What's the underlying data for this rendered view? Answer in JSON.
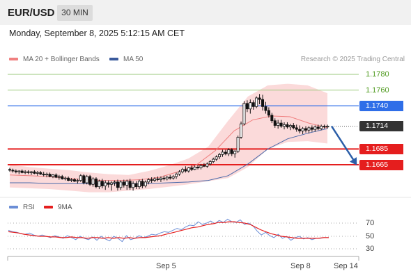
{
  "header": {
    "symbol": "EUR/USD",
    "timeframe": "30 MIN"
  },
  "datetime": "Monday, September 8, 2025 5:12:15 AM CET",
  "legend": {
    "ma20_label": "MA 20 + Bollinger Bands",
    "ma50_label": "MA 50",
    "credit": "Research © 2025 Trading Central"
  },
  "rsi_legend": {
    "rsi_label": "RSI",
    "ma_label": "9MA"
  },
  "price_levels": {
    "r2": {
      "label": "1.1780",
      "value": 1.178,
      "color": "#4f9a1f"
    },
    "r1": {
      "label": "1.1760",
      "value": 1.176,
      "color": "#4f9a1f"
    },
    "pivot": {
      "label": "1.1740",
      "value": 1.174,
      "color": "#2f6ee8"
    },
    "last": {
      "label": "1.1714",
      "value": 1.1714,
      "color": "#333333"
    },
    "s1": {
      "label": "1.1685",
      "value": 1.1685,
      "color": "#e51e1e"
    },
    "s2": {
      "label": "1.1665",
      "value": 1.1665,
      "color": "#e51e1e"
    }
  },
  "rsi_levels": {
    "upper": "70",
    "middle": "50",
    "lower": "30"
  },
  "xaxis": {
    "label1": "Sep 5",
    "label2": "Sep 8",
    "label3": "Sep 14"
  },
  "chart_data": {
    "type": "candlestick",
    "candles_ohlc": [
      [
        1.1659,
        1.1661,
        1.1656,
        1.1658
      ],
      [
        1.1658,
        1.166,
        1.1655,
        1.1657
      ],
      [
        1.1657,
        1.1659,
        1.1654,
        1.1656
      ],
      [
        1.1656,
        1.1658,
        1.1653,
        1.1657
      ],
      [
        1.1657,
        1.1659,
        1.1654,
        1.1655
      ],
      [
        1.1655,
        1.1658,
        1.1653,
        1.1656
      ],
      [
        1.1656,
        1.1658,
        1.1653,
        1.1655
      ],
      [
        1.1655,
        1.1657,
        1.1652,
        1.1656
      ],
      [
        1.1656,
        1.1658,
        1.1653,
        1.1654
      ],
      [
        1.1654,
        1.1657,
        1.1651,
        1.1655
      ],
      [
        1.1655,
        1.1657,
        1.1652,
        1.1653
      ],
      [
        1.1653,
        1.1656,
        1.165,
        1.1652
      ],
      [
        1.1652,
        1.1655,
        1.1649,
        1.1653
      ],
      [
        1.1653,
        1.1655,
        1.1649,
        1.165
      ],
      [
        1.165,
        1.1653,
        1.1648,
        1.1652
      ],
      [
        1.1652,
        1.1654,
        1.1648,
        1.1649
      ],
      [
        1.1649,
        1.1652,
        1.1646,
        1.165
      ],
      [
        1.165,
        1.1652,
        1.1646,
        1.1647
      ],
      [
        1.1647,
        1.165,
        1.1645,
        1.1648
      ],
      [
        1.1648,
        1.165,
        1.1644,
        1.1645
      ],
      [
        1.1645,
        1.1648,
        1.1643,
        1.1646
      ],
      [
        1.1646,
        1.1648,
        1.1643,
        1.1644
      ],
      [
        1.1644,
        1.1647,
        1.1641,
        1.1645
      ],
      [
        1.1645,
        1.1653,
        1.1643,
        1.1651
      ],
      [
        1.1651,
        1.1653,
        1.164,
        1.1642
      ],
      [
        1.1642,
        1.1652,
        1.164,
        1.165
      ],
      [
        1.165,
        1.1652,
        1.1638,
        1.164
      ],
      [
        1.164,
        1.1649,
        1.1637,
        1.1647
      ],
      [
        1.1647,
        1.1649,
        1.1635,
        1.1637
      ],
      [
        1.1637,
        1.1646,
        1.1634,
        1.1644
      ],
      [
        1.1644,
        1.1647,
        1.1635,
        1.1638
      ],
      [
        1.1638,
        1.1645,
        1.1633,
        1.1642
      ],
      [
        1.1642,
        1.1645,
        1.1636,
        1.164
      ],
      [
        1.164,
        1.1644,
        1.1632,
        1.1642
      ],
      [
        1.1642,
        1.1645,
        1.1638,
        1.1643
      ],
      [
        1.1643,
        1.1646,
        1.1632,
        1.1636
      ],
      [
        1.1636,
        1.1645,
        1.1633,
        1.1643
      ],
      [
        1.1643,
        1.1646,
        1.1636,
        1.1639
      ],
      [
        1.1639,
        1.1646,
        1.1633,
        1.1644
      ],
      [
        1.1644,
        1.1647,
        1.1633,
        1.1636
      ],
      [
        1.1636,
        1.1644,
        1.1632,
        1.1641
      ],
      [
        1.1641,
        1.1644,
        1.1634,
        1.1637
      ],
      [
        1.1637,
        1.1646,
        1.1634,
        1.1644
      ],
      [
        1.1644,
        1.1647,
        1.1635,
        1.1638
      ],
      [
        1.1638,
        1.1645,
        1.1636,
        1.1643
      ],
      [
        1.1643,
        1.1648,
        1.164,
        1.1646
      ],
      [
        1.1646,
        1.1649,
        1.1642,
        1.1645
      ],
      [
        1.1645,
        1.1649,
        1.1643,
        1.1647
      ],
      [
        1.1647,
        1.165,
        1.1644,
        1.1646
      ],
      [
        1.1646,
        1.165,
        1.1643,
        1.1648
      ],
      [
        1.1648,
        1.1651,
        1.1645,
        1.1647
      ],
      [
        1.1647,
        1.1651,
        1.1645,
        1.1649
      ],
      [
        1.1649,
        1.1652,
        1.1646,
        1.1648
      ],
      [
        1.1648,
        1.1652,
        1.1646,
        1.165
      ],
      [
        1.165,
        1.1655,
        1.1647,
        1.1653
      ],
      [
        1.1653,
        1.1658,
        1.1651,
        1.1656
      ],
      [
        1.1656,
        1.1661,
        1.1654,
        1.1659
      ],
      [
        1.1659,
        1.1663,
        1.1655,
        1.1657
      ],
      [
        1.1657,
        1.1662,
        1.1655,
        1.1661
      ],
      [
        1.1661,
        1.1664,
        1.1657,
        1.1659
      ],
      [
        1.1659,
        1.1664,
        1.1658,
        1.1662
      ],
      [
        1.1662,
        1.1665,
        1.1659,
        1.1661
      ],
      [
        1.1661,
        1.1666,
        1.1659,
        1.1664
      ],
      [
        1.1664,
        1.1667,
        1.1662,
        1.1663
      ],
      [
        1.1663,
        1.1668,
        1.1661,
        1.1666
      ],
      [
        1.1666,
        1.1671,
        1.1664,
        1.1669
      ],
      [
        1.1669,
        1.1674,
        1.1667,
        1.1672
      ],
      [
        1.1672,
        1.1677,
        1.167,
        1.1675
      ],
      [
        1.1675,
        1.168,
        1.1672,
        1.1678
      ],
      [
        1.1678,
        1.1684,
        1.1675,
        1.1681
      ],
      [
        1.1681,
        1.1684,
        1.1677,
        1.1679
      ],
      [
        1.1679,
        1.1686,
        1.1676,
        1.1684
      ],
      [
        1.1684,
        1.1686,
        1.1676,
        1.1679
      ],
      [
        1.1679,
        1.1684,
        1.1674,
        1.1682
      ],
      [
        1.1682,
        1.1702,
        1.168,
        1.17
      ],
      [
        1.17,
        1.172,
        1.1698,
        1.1717
      ],
      [
        1.1717,
        1.1746,
        1.1715,
        1.1743
      ],
      [
        1.1743,
        1.1747,
        1.1732,
        1.1736
      ],
      [
        1.1736,
        1.1748,
        1.173,
        1.1744
      ],
      [
        1.1744,
        1.1747,
        1.1735,
        1.1739
      ],
      [
        1.1739,
        1.1752,
        1.1737,
        1.175
      ],
      [
        1.175,
        1.1755,
        1.1742,
        1.1748
      ],
      [
        1.1748,
        1.1754,
        1.1734,
        1.1739
      ],
      [
        1.1739,
        1.1745,
        1.173,
        1.1734
      ],
      [
        1.1734,
        1.1738,
        1.1725,
        1.1728
      ],
      [
        1.1728,
        1.1731,
        1.1718,
        1.1721
      ],
      [
        1.1721,
        1.1724,
        1.1712,
        1.1715
      ],
      [
        1.1715,
        1.1722,
        1.1711,
        1.1718
      ],
      [
        1.1718,
        1.1722,
        1.1712,
        1.1714
      ],
      [
        1.1714,
        1.1719,
        1.171,
        1.1716
      ],
      [
        1.1716,
        1.1719,
        1.1711,
        1.1713
      ],
      [
        1.1713,
        1.1717,
        1.1709,
        1.1715
      ],
      [
        1.1715,
        1.1718,
        1.171,
        1.1712
      ],
      [
        1.1712,
        1.1716,
        1.1707,
        1.171
      ],
      [
        1.171,
        1.1715,
        1.1705,
        1.1708
      ],
      [
        1.1708,
        1.1713,
        1.1704,
        1.1711
      ],
      [
        1.1711,
        1.1714,
        1.1706,
        1.1709
      ],
      [
        1.1709,
        1.1714,
        1.1705,
        1.1712
      ],
      [
        1.1712,
        1.1715,
        1.1707,
        1.171
      ],
      [
        1.171,
        1.1715,
        1.1707,
        1.1713
      ],
      [
        1.1713,
        1.1716,
        1.1709,
        1.1711
      ],
      [
        1.1711,
        1.1716,
        1.1709,
        1.1714
      ],
      [
        1.1714,
        1.1716,
        1.1711,
        1.1713
      ],
      [
        1.1713,
        1.1716,
        1.1711,
        1.1714
      ]
    ],
    "ma20": [
      1.1652,
      1.1651,
      1.165,
      1.1648,
      1.1646,
      1.1645,
      1.1645,
      1.1646,
      1.1649,
      1.1656,
      1.1665,
      1.1683,
      1.1708,
      1.1722,
      1.1727,
      1.1726,
      1.1718,
      1.1712
    ],
    "ma50": [
      1.1642,
      1.1642,
      1.1641,
      1.1641,
      1.1641,
      1.1641,
      1.1641,
      1.1641,
      1.1642,
      1.1643,
      1.1645,
      1.1651,
      1.1666,
      1.1685,
      1.1698,
      1.1705,
      1.1711
    ],
    "bollinger_upper": [
      1.1665,
      1.1662,
      1.166,
      1.1658,
      1.1655,
      1.1653,
      1.1652,
      1.1657,
      1.1664,
      1.1673,
      1.1688,
      1.1721,
      1.1752,
      1.1766,
      1.1768,
      1.1766,
      1.1756
    ],
    "bollinger_lower": [
      1.1636,
      1.1635,
      1.1634,
      1.1632,
      1.163,
      1.163,
      1.1632,
      1.1634,
      1.1637,
      1.164,
      1.1644,
      1.1648,
      1.1662,
      1.1685,
      1.1694,
      1.1695,
      1.1692
    ],
    "forecast": {
      "from": 1.1714,
      "to": 1.1665
    },
    "rsi": [
      59,
      57,
      56,
      54,
      53,
      55,
      52,
      50,
      52,
      50,
      48,
      51,
      49,
      47,
      51,
      48,
      45,
      50,
      47,
      45,
      49,
      44,
      50,
      46,
      43,
      50,
      47,
      42,
      51,
      45,
      47,
      51,
      48,
      50,
      53,
      52,
      55,
      57,
      56,
      59,
      62,
      60,
      64,
      67,
      66,
      72,
      68,
      70,
      73,
      69,
      74,
      71,
      76,
      72,
      71,
      75,
      68,
      70,
      66,
      58,
      52,
      56,
      51,
      48,
      53,
      47,
      50,
      44,
      48,
      50,
      46,
      48,
      45,
      47,
      47,
      48,
      48
    ],
    "rsi_ma": [
      57,
      56,
      55,
      53,
      52,
      51,
      50,
      50,
      49,
      49,
      48,
      48,
      49,
      48,
      48,
      47,
      48,
      48,
      47,
      48,
      47,
      48,
      47,
      48,
      47,
      48,
      48,
      49,
      50,
      51,
      53,
      55,
      57,
      59,
      61,
      63,
      64,
      66,
      68,
      69,
      71,
      71,
      72,
      72,
      71,
      70,
      68,
      64,
      60,
      57,
      54,
      52,
      50,
      49,
      48,
      47,
      47,
      47,
      47,
      47,
      48,
      48
    ],
    "rsi_levels": [
      70,
      50,
      30
    ],
    "xticks": [
      "Sep 5",
      "Sep 8",
      "Sep 14"
    ]
  }
}
